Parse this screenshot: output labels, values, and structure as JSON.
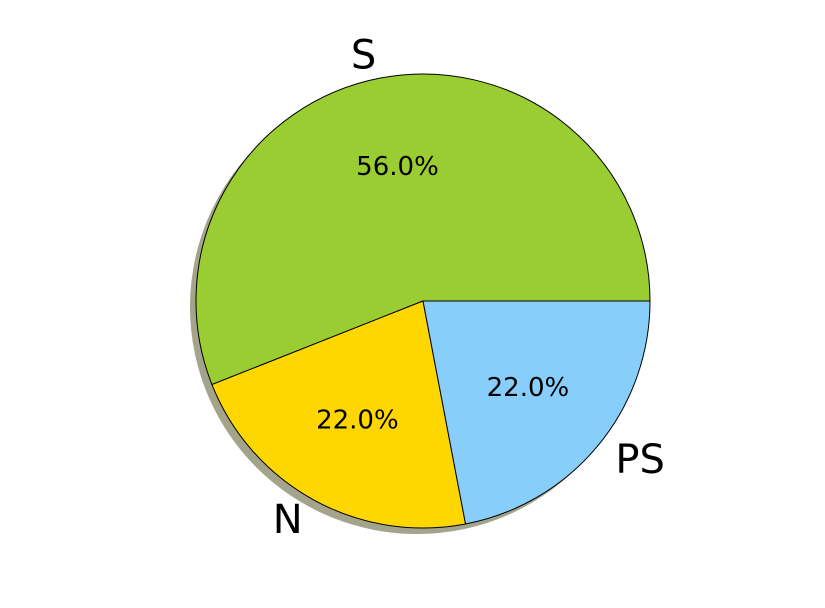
{
  "chart_data": {
    "type": "pie",
    "title": "",
    "slices": [
      {
        "label": "S",
        "value": 56.0,
        "pct_label": "56.0%",
        "color": "#9ACD32"
      },
      {
        "label": "N",
        "value": 22.0,
        "pct_label": "22.0%",
        "color": "#FFD700"
      },
      {
        "label": "PS",
        "value": 22.0,
        "pct_label": "22.0%",
        "color": "#87CEFA"
      }
    ],
    "start_angle_deg": 0,
    "direction": "counterclockwise",
    "shadow": true,
    "legend": "none"
  }
}
